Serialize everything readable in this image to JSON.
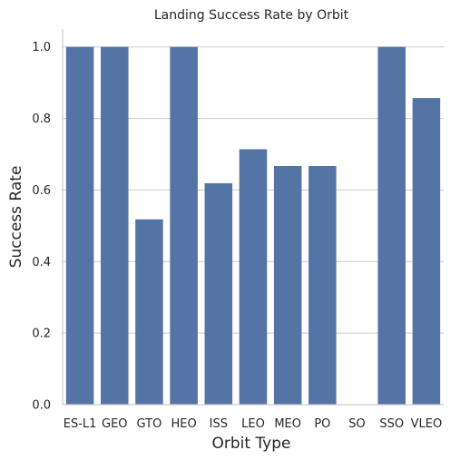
{
  "chart_data": {
    "type": "bar",
    "title": "Landing Success Rate by Orbit",
    "xlabel": "Orbit Type",
    "ylabel": "Success Rate",
    "categories": [
      "ES-L1",
      "GEO",
      "GTO",
      "HEO",
      "ISS",
      "LEO",
      "MEO",
      "PO",
      "SO",
      "SSO",
      "VLEO"
    ],
    "values": [
      1.0,
      1.0,
      0.518,
      1.0,
      0.619,
      0.714,
      0.667,
      0.667,
      0.0,
      1.0,
      0.857
    ],
    "ylim": [
      0,
      1.05
    ],
    "yticks": [
      0.0,
      0.2,
      0.4,
      0.6,
      0.8,
      1.0
    ],
    "ytick_labels": [
      "0.0",
      "0.2",
      "0.4",
      "0.6",
      "0.8",
      "1.0"
    ],
    "grid": "horizontal",
    "bar_color": "#5574a6"
  }
}
